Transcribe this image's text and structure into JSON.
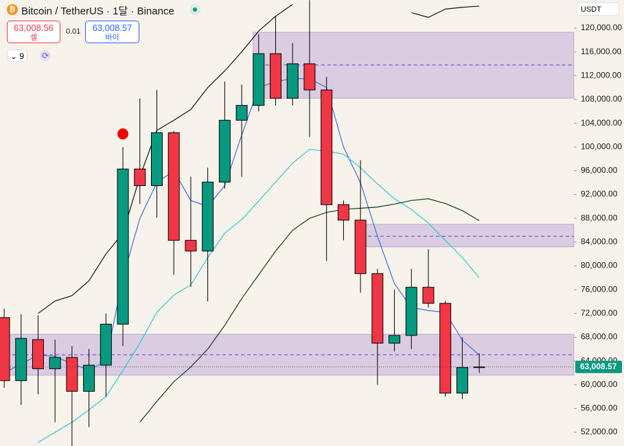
{
  "header": {
    "title": "Bitcoin / TetherUS · 1달 · Binance",
    "sell_price": "63,008.56",
    "sell_label": "셀",
    "spread": "0.01",
    "buy_price": "63,008.57",
    "buy_label": "바이",
    "indicator_count": "9",
    "currency": "USDT"
  },
  "chart_data": {
    "type": "candlestick",
    "ylim": [
      49700,
      124730
    ],
    "yticks": [
      {
        "value": 52000,
        "label": "52,000.00"
      },
      {
        "value": 56000,
        "label": "56,000.00"
      },
      {
        "value": 60000,
        "label": "60,000.00"
      },
      {
        "value": 64000,
        "label": "64,000.00"
      },
      {
        "value": 68000,
        "label": "68,000.00"
      },
      {
        "value": 72000,
        "label": "72,000.00"
      },
      {
        "value": 76000,
        "label": "76,000.00"
      },
      {
        "value": 80000,
        "label": "80,000.00"
      },
      {
        "value": 84000,
        "label": "84,000.00"
      },
      {
        "value": 88000,
        "label": "88,000.00"
      },
      {
        "value": 92000,
        "label": "92,000.00"
      },
      {
        "value": 96000,
        "label": "96,000.00"
      },
      {
        "value": 100000,
        "label": "100,000.00"
      },
      {
        "value": 104000,
        "label": "104,000.00"
      },
      {
        "value": 108000,
        "label": "108,000.00"
      },
      {
        "value": 112000,
        "label": "112,000.00"
      },
      {
        "value": 116000,
        "label": "116,000.00"
      },
      {
        "value": 120000,
        "label": "120,000.00"
      }
    ],
    "up_color": "#089981",
    "down_color": "#f23645",
    "open": [
      71300,
      60700,
      67600,
      62700,
      64600,
      58900,
      63300,
      70200,
      96300,
      93500,
      102400,
      84300,
      82500,
      94100,
      104500,
      107000,
      115700,
      108200,
      114000,
      109600,
      90300,
      87700,
      78700,
      67000,
      68300,
      76400,
      73700,
      58600,
      62900
    ],
    "high": [
      72800,
      71850,
      71700,
      67600,
      66500,
      66000,
      72000,
      100000,
      108200,
      109600,
      102700,
      95000,
      96500,
      111000,
      110500,
      119000,
      122000,
      117500,
      124700,
      111800,
      91000,
      97800,
      79500,
      76000,
      79500,
      82800,
      74100,
      68000,
      65300
    ],
    "low": [
      59500,
      56600,
      58400,
      53700,
      49700,
      52900,
      58000,
      66500,
      90400,
      88100,
      78500,
      76500,
      74000,
      93000,
      95000,
      106000,
      107000,
      107000,
      101700,
      80800,
      84300,
      75500,
      60000,
      65600,
      66000,
      73000,
      58000,
      57600,
      62000
    ],
    "close": [
      60700,
      67800,
      62700,
      64600,
      58900,
      63300,
      70200,
      96300,
      93500,
      102400,
      84300,
      82500,
      94100,
      104500,
      107000,
      115700,
      108200,
      114000,
      109600,
      90300,
      87700,
      78700,
      67000,
      68300,
      76400,
      73700,
      58600,
      62900,
      63008.57
    ],
    "series": [
      {
        "color": "#3d6fe0",
        "values": [
          62000,
          63500,
          65000,
          64800,
          63500,
          62500,
          64000,
          78000,
          88000,
          94000,
          96000,
          91000,
          90000,
          93500,
          102000,
          110000,
          111000,
          111500,
          111500,
          110000,
          100000,
          94000,
          85000,
          77000,
          73000,
          72500,
          72200,
          67500,
          65000
        ]
      },
      {
        "color": "#2ec4d6",
        "values": [
          null,
          null,
          50300,
          52000,
          53700,
          55800,
          58000,
          62400,
          67000,
          72200,
          75100,
          76800,
          81400,
          85500,
          87800,
          90900,
          94100,
          97300,
          99600,
          99300,
          98800,
          96500,
          93800,
          91300,
          89500,
          87200,
          84300,
          81400,
          78000
        ]
      },
      {
        "color": "#0b3d1f",
        "values": [
          null,
          null,
          null,
          null,
          null,
          null,
          null,
          null,
          53700,
          57200,
          60500,
          63000,
          66000,
          70000,
          74500,
          78500,
          82500,
          86000,
          88000,
          89000,
          89500,
          89700,
          89900,
          90400,
          91000,
          91300,
          90500,
          89300,
          87600
        ]
      },
      {
        "color": "#111111",
        "values": [
          null,
          null,
          72000,
          74100,
          75000,
          77500,
          82000,
          85500,
          95000,
          102800,
          104500,
          106300,
          110000,
          112800,
          116000,
          119500,
          122000,
          124000,
          null,
          null,
          null,
          null,
          null,
          null,
          122600,
          121800,
          123200,
          123500,
          123700
        ]
      }
    ],
    "zones": [
      {
        "start": 15,
        "top": 119300,
        "bottom": 108200,
        "mid": 113800
      },
      {
        "start": 21.4,
        "top": 87000,
        "bottom": 83200,
        "mid": 85000
      },
      {
        "start": -1,
        "top": 68500,
        "bottom": 61600,
        "mid": 65050
      }
    ],
    "zone_color": "#9575cd",
    "signal": {
      "index": 7,
      "value": 102200,
      "color": "#f20000"
    },
    "last_price": {
      "value": 63008.57,
      "label": "63,008.57"
    }
  }
}
